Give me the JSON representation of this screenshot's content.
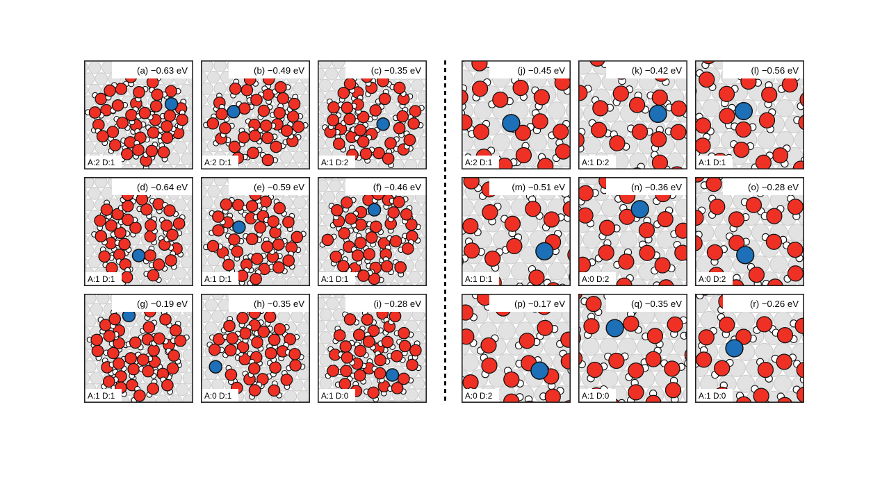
{
  "figure": {
    "description": "Eighteen atomistic top-view panels of water layers with a single blue adatom on a gray metal substrate; each panel reports an adsorption energy and acceptor/donor counts",
    "colors": {
      "oxygen_red": "#ee3124",
      "hydrogen_white": "#ffffff",
      "adatom_blue": "#1d6fb7",
      "substrate_fill": "#e2e2e2",
      "substrate_stroke": "#c9c9c9",
      "atom_outline": "#111111",
      "panel_border": "#222222",
      "separator_line": "#111111",
      "background": "#ffffff"
    },
    "groups": [
      {
        "name": "cluster-configurations",
        "style": "cluster",
        "panels": [
          {
            "id": "a",
            "label": "(a) −0.63 eV",
            "energy_eV": -0.63,
            "badge": "A:2 D:1",
            "acceptors": 2,
            "donors": 1,
            "blue_pos": [
              0.8,
              0.4
            ]
          },
          {
            "id": "b",
            "label": "(b) −0.49 eV",
            "energy_eV": -0.49,
            "badge": "A:2 D:1",
            "acceptors": 2,
            "donors": 1,
            "blue_pos": [
              0.3,
              0.47
            ]
          },
          {
            "id": "c",
            "label": "(c) −0.35 eV",
            "energy_eV": -0.35,
            "badge": "A:1 D:2",
            "acceptors": 1,
            "donors": 2,
            "blue_pos": [
              0.6,
              0.585
            ]
          },
          {
            "id": "d",
            "label": "(d) −0.64 eV",
            "energy_eV": -0.64,
            "badge": "A:1 D:1",
            "acceptors": 1,
            "donors": 1,
            "blue_pos": [
              0.5,
              0.72
            ]
          },
          {
            "id": "e",
            "label": "(e) −0.59 eV",
            "energy_eV": -0.59,
            "badge": "A:1 D:1",
            "acceptors": 1,
            "donors": 1,
            "blue_pos": [
              0.35,
              0.46
            ]
          },
          {
            "id": "f",
            "label": "(f) −0.46 eV",
            "energy_eV": -0.46,
            "badge": "A:1 D:1",
            "acceptors": 1,
            "donors": 1,
            "blue_pos": [
              0.52,
              0.3
            ]
          },
          {
            "id": "g",
            "label": "(g) −0.19 eV",
            "energy_eV": -0.19,
            "badge": "A:1 D:1",
            "acceptors": 1,
            "donors": 1,
            "blue_pos": [
              0.41,
              0.2
            ]
          },
          {
            "id": "h",
            "label": "(h) −0.35 eV",
            "energy_eV": -0.35,
            "badge": "A:0 D:1",
            "acceptors": 0,
            "donors": 1,
            "blue_pos": [
              0.135,
              0.67
            ]
          },
          {
            "id": "i",
            "label": "(i) −0.28 eV",
            "energy_eV": -0.28,
            "badge": "A:1 D:0",
            "acceptors": 1,
            "donors": 0,
            "blue_pos": [
              0.685,
              0.745
            ]
          }
        ]
      },
      {
        "name": "ordered-overlayer-configurations",
        "style": "ordered",
        "panels": [
          {
            "id": "j",
            "label": "(j) −0.45 eV",
            "energy_eV": -0.45,
            "badge": "A:2 D:1",
            "acceptors": 2,
            "donors": 1,
            "blue_pos": [
              0.455,
              0.575
            ]
          },
          {
            "id": "k",
            "label": "(k) −0.42 eV",
            "energy_eV": -0.42,
            "badge": "A:1 D:2",
            "acceptors": 1,
            "donors": 2,
            "blue_pos": [
              0.73,
              0.49
            ]
          },
          {
            "id": "l",
            "label": "(l) −0.56 eV",
            "energy_eV": -0.56,
            "badge": "A:1 D:1",
            "acceptors": 1,
            "donors": 1,
            "blue_pos": [
              0.445,
              0.465
            ]
          },
          {
            "id": "m",
            "label": "(m) −0.51 eV",
            "energy_eV": -0.51,
            "badge": "A:1 D:1",
            "acceptors": 1,
            "donors": 1,
            "blue_pos": [
              0.76,
              0.68
            ]
          },
          {
            "id": "n",
            "label": "(n) −0.36 eV",
            "energy_eV": -0.36,
            "badge": "A:0 D:2",
            "acceptors": 0,
            "donors": 2,
            "blue_pos": [
              0.565,
              0.295
            ]
          },
          {
            "id": "o",
            "label": "(o) −0.28 eV",
            "energy_eV": -0.28,
            "badge": "A:0 D:2",
            "acceptors": 0,
            "donors": 2,
            "blue_pos": [
              0.46,
              0.715
            ]
          },
          {
            "id": "p",
            "label": "(p) −0.17 eV",
            "energy_eV": -0.17,
            "badge": "A:0 D:2",
            "acceptors": 0,
            "donors": 2,
            "blue_pos": [
              0.715,
              0.705
            ]
          },
          {
            "id": "q",
            "label": "(q) −0.35 eV",
            "energy_eV": -0.35,
            "badge": "A:1 D:0",
            "acceptors": 1,
            "donors": 0,
            "blue_pos": [
              0.335,
              0.315
            ]
          },
          {
            "id": "r",
            "label": "(r) −0.26 eV",
            "energy_eV": -0.26,
            "badge": "A:1 D:0",
            "acceptors": 1,
            "donors": 0,
            "blue_pos": [
              0.36,
              0.5
            ]
          }
        ]
      }
    ]
  }
}
